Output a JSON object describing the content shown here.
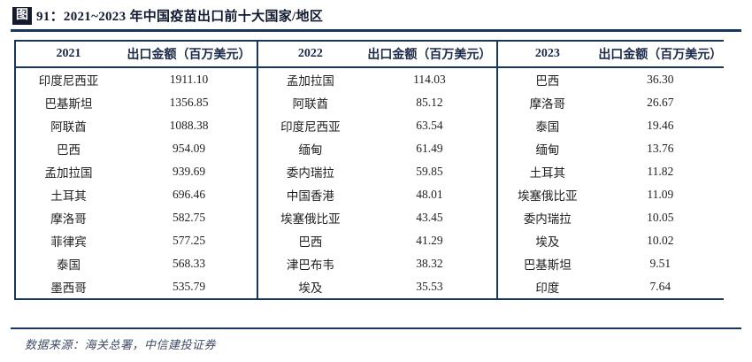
{
  "title": {
    "badge": "图",
    "text": "91：2021~2023 年中国疫苗出口前十大国家/地区"
  },
  "table": {
    "sections": [
      {
        "year": "2021",
        "amount_header": "出口金额（百万美元）",
        "rows": [
          {
            "country": "印度尼西亚",
            "value": "1911.10"
          },
          {
            "country": "巴基斯坦",
            "value": "1356.85"
          },
          {
            "country": "阿联酋",
            "value": "1088.38"
          },
          {
            "country": "巴西",
            "value": "954.09"
          },
          {
            "country": "孟加拉国",
            "value": "939.69"
          },
          {
            "country": "土耳其",
            "value": "696.46"
          },
          {
            "country": "摩洛哥",
            "value": "582.75"
          },
          {
            "country": "菲律宾",
            "value": "577.25"
          },
          {
            "country": "泰国",
            "value": "568.33"
          },
          {
            "country": "墨西哥",
            "value": "535.79"
          }
        ]
      },
      {
        "year": "2022",
        "amount_header": "出口金额（百万美元）",
        "rows": [
          {
            "country": "孟加拉国",
            "value": "114.03"
          },
          {
            "country": "阿联酋",
            "value": "85.12"
          },
          {
            "country": "印度尼西亚",
            "value": "63.54"
          },
          {
            "country": "缅甸",
            "value": "61.49"
          },
          {
            "country": "委内瑞拉",
            "value": "59.85"
          },
          {
            "country": "中国香港",
            "value": "48.01"
          },
          {
            "country": "埃塞俄比亚",
            "value": "43.45"
          },
          {
            "country": "巴西",
            "value": "41.29"
          },
          {
            "country": "津巴布韦",
            "value": "38.32"
          },
          {
            "country": "埃及",
            "value": "35.53"
          }
        ]
      },
      {
        "year": "2023",
        "amount_header": "出口金额（百万美元）",
        "rows": [
          {
            "country": "巴西",
            "value": "36.30"
          },
          {
            "country": "摩洛哥",
            "value": "26.67"
          },
          {
            "country": "泰国",
            "value": "19.46"
          },
          {
            "country": "缅甸",
            "value": "13.76"
          },
          {
            "country": "土耳其",
            "value": "11.82"
          },
          {
            "country": "埃塞俄比亚",
            "value": "11.09"
          },
          {
            "country": "委内瑞拉",
            "value": "10.05"
          },
          {
            "country": "埃及",
            "value": "10.02"
          },
          {
            "country": "巴基斯坦",
            "value": "9.51"
          },
          {
            "country": "印度",
            "value": "7.64"
          }
        ]
      }
    ]
  },
  "footer": {
    "source": "数据来源：海关总署，中信建投证券"
  },
  "colors": {
    "border_navy": "#17375E",
    "badge_bg": "#121a2b",
    "title_text": "#101a30",
    "header_text": "#1b2a4a",
    "body_text": "#212121",
    "source_text": "#3f4a63"
  }
}
